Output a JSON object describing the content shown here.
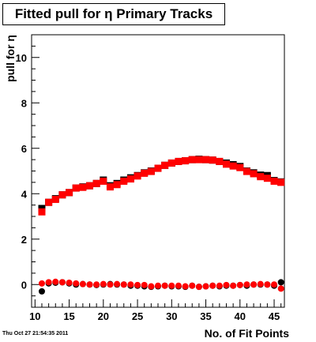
{
  "title": "Fitted pull for  η Primary Tracks",
  "timestamp": "Thu Oct 27 21:54:35 2011",
  "chart_data": {
    "type": "scatter",
    "xlabel": "No. of Fit Points",
    "ylabel": "pull for η",
    "xlim": [
      9.5,
      46.5
    ],
    "ylim": [
      -1,
      11
    ],
    "xticks": [
      10,
      15,
      20,
      25,
      30,
      35,
      40,
      45
    ],
    "yticks": [
      0,
      2,
      4,
      6,
      8,
      10
    ],
    "grid": false,
    "colors": {
      "black": "#000000",
      "red": "#ff0000"
    },
    "x": [
      11,
      12,
      13,
      14,
      15,
      16,
      17,
      18,
      19,
      20,
      21,
      22,
      23,
      24,
      25,
      26,
      27,
      28,
      29,
      30,
      31,
      32,
      33,
      34,
      35,
      36,
      37,
      38,
      39,
      40,
      41,
      42,
      43,
      44,
      45,
      46
    ],
    "series": [
      {
        "marker": "square",
        "color": "#000000",
        "values": [
          3.35,
          3.62,
          3.78,
          3.95,
          4.05,
          4.25,
          4.3,
          4.35,
          4.45,
          4.6,
          4.35,
          4.45,
          4.6,
          4.7,
          4.8,
          4.92,
          5.0,
          5.12,
          5.25,
          5.35,
          5.42,
          5.45,
          5.5,
          5.52,
          5.5,
          5.48,
          5.42,
          5.35,
          5.28,
          5.2,
          5.0,
          4.92,
          4.82,
          4.8,
          4.58,
          4.52
        ]
      },
      {
        "marker": "square",
        "color": "#ff0000",
        "values": [
          3.2,
          3.62,
          3.75,
          3.95,
          4.05,
          4.25,
          4.28,
          4.35,
          4.45,
          4.55,
          4.3,
          4.4,
          4.55,
          4.65,
          4.78,
          4.9,
          4.98,
          5.12,
          5.25,
          5.35,
          5.42,
          5.45,
          5.5,
          5.5,
          5.5,
          5.48,
          5.42,
          5.3,
          5.22,
          5.15,
          4.98,
          4.88,
          4.75,
          4.68,
          4.55,
          4.5
        ]
      },
      {
        "marker": "circle",
        "color": "#000000",
        "values": [
          -0.3,
          0.05,
          0.08,
          0.1,
          0.05,
          0.0,
          0.02,
          0.0,
          -0.02,
          0.0,
          0.02,
          0.0,
          0.0,
          -0.05,
          -0.05,
          -0.08,
          -0.1,
          -0.08,
          -0.05,
          -0.08,
          -0.08,
          -0.1,
          -0.05,
          -0.1,
          -0.08,
          -0.05,
          -0.08,
          -0.05,
          -0.05,
          -0.02,
          -0.05,
          0.0,
          0.0,
          0.0,
          -0.05,
          0.1
        ]
      },
      {
        "marker": "circle",
        "color": "#ff0000",
        "values": [
          0.05,
          0.1,
          0.12,
          0.1,
          0.08,
          0.05,
          0.02,
          0.0,
          0.0,
          0.02,
          0.0,
          0.02,
          0.0,
          0.0,
          -0.02,
          -0.02,
          -0.08,
          -0.05,
          -0.05,
          -0.05,
          -0.05,
          -0.08,
          -0.05,
          -0.1,
          -0.08,
          -0.05,
          -0.05,
          -0.02,
          -0.05,
          -0.02,
          0.0,
          0.0,
          0.02,
          0.0,
          0.0,
          -0.18
        ]
      }
    ]
  }
}
